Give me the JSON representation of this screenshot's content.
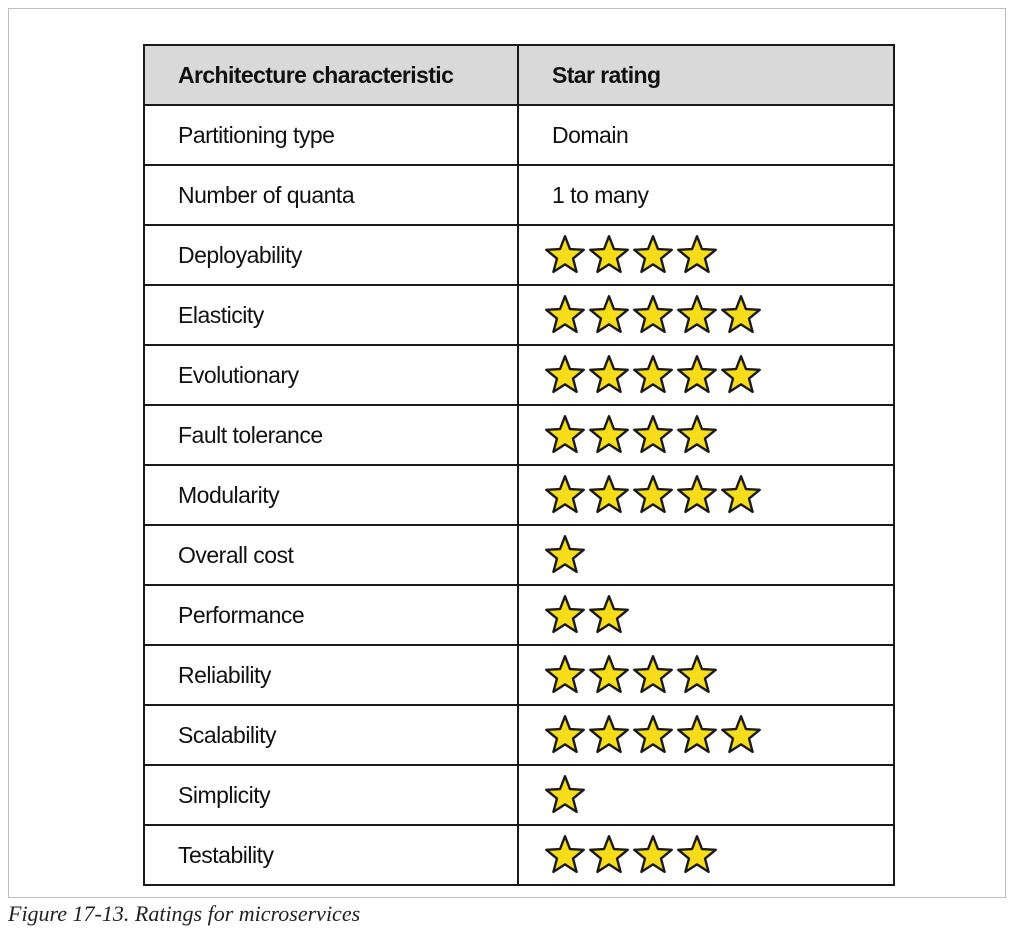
{
  "table": {
    "headers": [
      "Architecture characteristic",
      "Star rating"
    ],
    "rows": [
      {
        "characteristic": "Partitioning type",
        "value": "Domain"
      },
      {
        "characteristic": "Number of quanta",
        "value": "1 to many"
      },
      {
        "characteristic": "Deployability",
        "stars": 4
      },
      {
        "characteristic": "Elasticity",
        "stars": 5
      },
      {
        "characteristic": "Evolutionary",
        "stars": 5
      },
      {
        "characteristic": "Fault tolerance",
        "stars": 4
      },
      {
        "characteristic": "Modularity",
        "stars": 5
      },
      {
        "characteristic": "Overall cost",
        "stars": 1
      },
      {
        "characteristic": "Performance",
        "stars": 2
      },
      {
        "characteristic": "Reliability",
        "stars": 4
      },
      {
        "characteristic": "Scalability",
        "stars": 5
      },
      {
        "characteristic": "Simplicity",
        "stars": 1
      },
      {
        "characteristic": "Testability",
        "stars": 4
      }
    ]
  },
  "caption": "Figure 17-13. Ratings for microservices",
  "colors": {
    "header_bg": "#d9d9d9",
    "star_fill": "#f7dc1a",
    "star_stroke": "#1a1a1a",
    "border": "#1a1a1a"
  },
  "icons": {
    "rating": "star-icon"
  }
}
